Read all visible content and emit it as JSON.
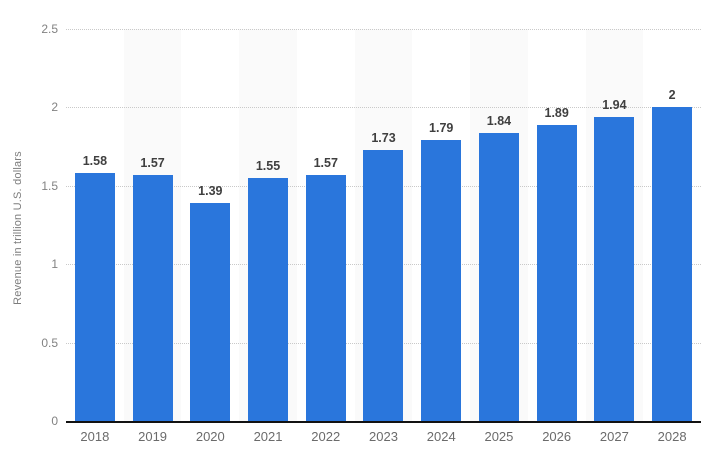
{
  "chart_data": {
    "type": "bar",
    "title": "",
    "xlabel": "",
    "ylabel": "Revenue in trillion U.S. dollars",
    "categories": [
      "2018",
      "2019",
      "2020",
      "2021",
      "2022",
      "2023",
      "2024",
      "2025",
      "2026",
      "2027",
      "2028"
    ],
    "values": [
      1.58,
      1.57,
      1.39,
      1.55,
      1.57,
      1.73,
      1.79,
      1.84,
      1.89,
      1.94,
      2
    ],
    "value_labels": [
      "1.58",
      "1.57",
      "1.39",
      "1.55",
      "1.57",
      "1.73",
      "1.79",
      "1.84",
      "1.89",
      "1.94",
      "2"
    ],
    "y_ticks": [
      0,
      0.5,
      1,
      1.5,
      2,
      2.5
    ],
    "y_tick_labels": [
      "0",
      "0.5",
      "1",
      "1.5",
      "2",
      "2.5"
    ],
    "ylim": [
      0,
      2.5
    ],
    "grid": "horizontal-dotted",
    "legend": "none",
    "colors": {
      "bar": "#2a76dc",
      "band": "#fafafa",
      "gridline": "#c9c9c9",
      "axis_line": "#121212",
      "value_label": "#3f3f3f",
      "tick_label": "#828282",
      "x_label": "#6b6b6b",
      "background": "#ffffff"
    },
    "alternating_bands_behind": [
      "2019",
      "2021",
      "2023",
      "2025",
      "2027"
    ]
  }
}
